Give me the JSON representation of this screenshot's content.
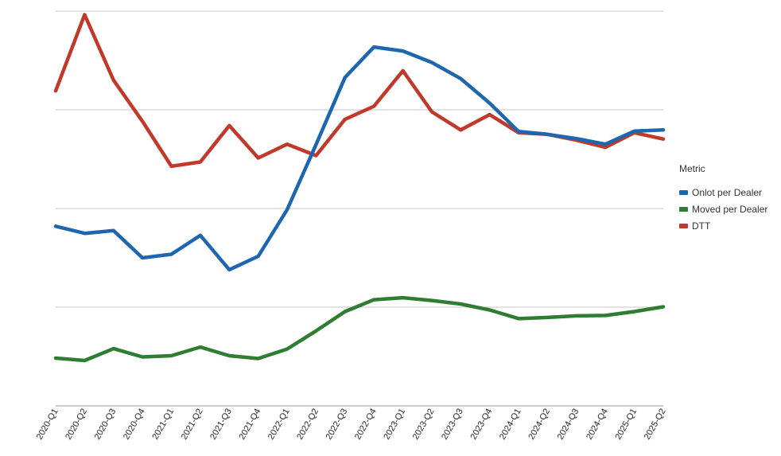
{
  "chart_data": {
    "type": "line",
    "title": "",
    "xlabel": "",
    "ylabel": "",
    "grid": true,
    "y_tick_labels_visible": false,
    "legend_placement": "right",
    "legend_title": "Metric",
    "ylim": [
      0,
      10
    ],
    "categories": [
      "2020-Q1",
      "2020-Q2",
      "2020-Q3",
      "2020-Q4",
      "2021-Q1",
      "2021-Q2",
      "2021-Q3",
      "2021-Q4",
      "2022-Q1",
      "2022-Q2",
      "2022-Q3",
      "2022-Q4",
      "2023-Q1",
      "2023-Q2",
      "2023-Q3",
      "2023-Q4",
      "2024-Q1",
      "2024-Q2",
      "2024-Q3",
      "2024-Q4",
      "2025-Q1",
      "2025-Q2"
    ],
    "series": [
      {
        "name": "Onlot per Dealer",
        "color": "#1f66b0",
        "values": [
          4.55,
          4.37,
          4.44,
          3.75,
          3.84,
          4.32,
          3.45,
          3.79,
          4.97,
          6.62,
          8.32,
          9.09,
          8.99,
          8.7,
          8.29,
          7.67,
          6.95,
          6.88,
          6.77,
          6.63,
          6.96,
          6.99
        ]
      },
      {
        "name": "Moved per Dealer",
        "color": "#2e7d32",
        "values": [
          1.21,
          1.15,
          1.45,
          1.24,
          1.27,
          1.49,
          1.27,
          1.2,
          1.44,
          1.9,
          2.39,
          2.69,
          2.74,
          2.67,
          2.58,
          2.43,
          2.21,
          2.24,
          2.28,
          2.29,
          2.39,
          2.51
        ]
      },
      {
        "name": "DTT",
        "color": "#c0392b",
        "values": [
          7.98,
          9.91,
          8.25,
          7.21,
          6.07,
          6.18,
          7.1,
          6.28,
          6.63,
          6.34,
          7.26,
          7.59,
          8.49,
          7.45,
          6.99,
          7.38,
          6.92,
          6.88,
          6.73,
          6.55,
          6.92,
          6.76
        ]
      }
    ]
  }
}
